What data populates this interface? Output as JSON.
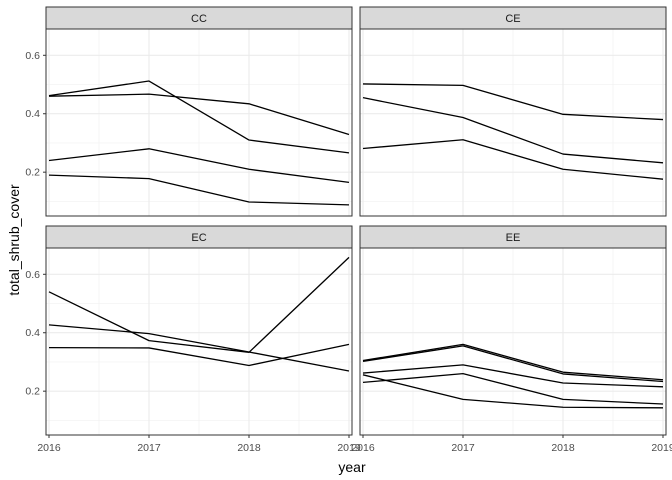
{
  "chart_data": {
    "type": "line",
    "facet_layout": "2x2",
    "xlabel": "year",
    "ylabel": "total_shrub_cover",
    "x": [
      2016,
      2017,
      2018,
      2019
    ],
    "x_ticks": [
      2016,
      2017,
      2018,
      2019
    ],
    "x_tick_labels": [
      "2016",
      "2017",
      "2018",
      "2019"
    ],
    "xlim": [
      2015.97,
      2019.03
    ],
    "y_ticks": [
      0.2,
      0.4,
      0.6
    ],
    "y_tick_labels": [
      "0.2",
      "0.4",
      "0.6"
    ],
    "ylim": [
      0.05,
      0.69
    ],
    "grid": true,
    "line_color": "#000000",
    "strip_fill": "#d9d9d9",
    "panels": [
      {
        "title": "CC",
        "series": [
          {
            "values": [
              0.462,
              0.512,
              0.31,
              0.266
            ]
          },
          {
            "values": [
              0.46,
              0.467,
              0.434,
              0.329
            ]
          },
          {
            "values": [
              0.24,
              0.28,
              0.21,
              0.165
            ]
          },
          {
            "values": [
              0.19,
              0.178,
              0.098,
              0.088
            ]
          }
        ]
      },
      {
        "title": "CE",
        "series": [
          {
            "values": [
              0.502,
              0.497,
              0.398,
              0.38
            ]
          },
          {
            "values": [
              0.455,
              0.387,
              0.262,
              0.232
            ]
          },
          {
            "values": [
              0.281,
              0.311,
              0.21,
              0.176
            ]
          }
        ]
      },
      {
        "title": "EC",
        "series": [
          {
            "values": [
              0.54,
              0.373,
              0.333,
              0.658
            ]
          },
          {
            "values": [
              0.427,
              0.397,
              0.334,
              0.269
            ]
          },
          {
            "values": [
              0.349,
              0.348,
              0.288,
              0.36
            ]
          }
        ]
      },
      {
        "title": "EE",
        "series": [
          {
            "values": [
              0.305,
              0.36,
              0.265,
              0.239
            ]
          },
          {
            "values": [
              0.302,
              0.355,
              0.259,
              0.233
            ]
          },
          {
            "values": [
              0.23,
              0.26,
              0.172,
              0.156
            ]
          },
          {
            "values": [
              0.262,
              0.29,
              0.228,
              0.215
            ]
          },
          {
            "values": [
              0.256,
              0.172,
              0.145,
              0.143
            ]
          }
        ]
      }
    ]
  }
}
